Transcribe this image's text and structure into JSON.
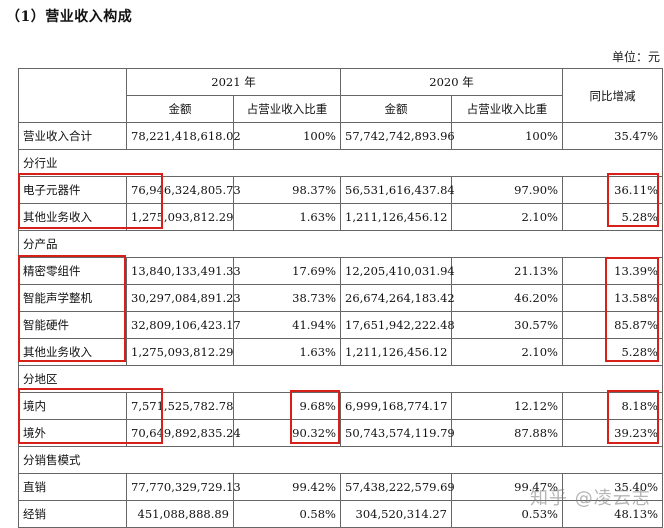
{
  "section_title": "（1）营业收入构成",
  "unit": "单位：元",
  "headers": {
    "year_2021": "2021 年",
    "year_2020": "2020 年",
    "yoy": "同比增减",
    "amount": "金额",
    "ratio": "占营业收入比重"
  },
  "total": {
    "label": "营业收入合计",
    "amt2021": "78,221,418,618.02",
    "ratio2021": "100%",
    "amt2020": "57,742,742,893.96",
    "ratio2020": "100%",
    "yoy": "35.47%"
  },
  "groups": [
    {
      "title": "分行业",
      "rows": [
        {
          "label": "电子元器件",
          "amt2021": "76,946,324,805.73",
          "ratio2021": "98.37%",
          "amt2020": "56,531,616,437.84",
          "ratio2020": "97.90%",
          "yoy": "36.11%"
        },
        {
          "label": "其他业务收入",
          "amt2021": "1,275,093,812.29",
          "ratio2021": "1.63%",
          "amt2020": "1,211,126,456.12",
          "ratio2020": "2.10%",
          "yoy": "5.28%"
        }
      ]
    },
    {
      "title": "分产品",
      "rows": [
        {
          "label": "精密零组件",
          "amt2021": "13,840,133,491.33",
          "ratio2021": "17.69%",
          "amt2020": "12,205,410,031.94",
          "ratio2020": "21.13%",
          "yoy": "13.39%"
        },
        {
          "label": "智能声学整机",
          "amt2021": "30,297,084,891.23",
          "ratio2021": "38.73%",
          "amt2020": "26,674,264,183.42",
          "ratio2020": "46.20%",
          "yoy": "13.58%"
        },
        {
          "label": "智能硬件",
          "amt2021": "32,809,106,423.17",
          "ratio2021": "41.94%",
          "amt2020": "17,651,942,222.48",
          "ratio2020": "30.57%",
          "yoy": "85.87%"
        },
        {
          "label": "其他业务收入",
          "amt2021": "1,275,093,812.29",
          "ratio2021": "1.63%",
          "amt2020": "1,211,126,456.12",
          "ratio2020": "2.10%",
          "yoy": "5.28%"
        }
      ]
    },
    {
      "title": "分地区",
      "rows": [
        {
          "label": "境内",
          "amt2021": "7,571,525,782.78",
          "ratio2021": "9.68%",
          "amt2020": "6,999,168,774.17",
          "ratio2020": "12.12%",
          "yoy": "8.18%"
        },
        {
          "label": "境外",
          "amt2021": "70,649,892,835.24",
          "ratio2021": "90.32%",
          "amt2020": "50,743,574,119.79",
          "ratio2020": "87.88%",
          "yoy": "39.23%"
        }
      ]
    },
    {
      "title": "分销售模式",
      "rows": [
        {
          "label": "直销",
          "amt2021": "77,770,329,729.13",
          "ratio2021": "99.42%",
          "amt2020": "57,438,222,579.69",
          "ratio2020": "99.47%",
          "yoy": "35.40%"
        },
        {
          "label": "经销",
          "amt2021": "451,088,888.89",
          "ratio2021": "0.58%",
          "amt2020": "304,520,314.27",
          "ratio2020": "0.53%",
          "yoy": "48.13%"
        }
      ]
    }
  ],
  "watermark": "知乎 @凌云志",
  "highlight_color": "#d8201a"
}
